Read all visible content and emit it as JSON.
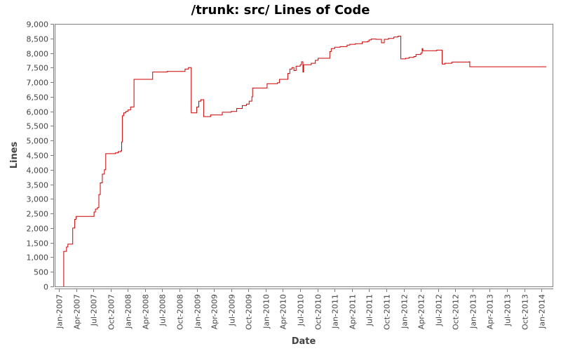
{
  "chart_data": {
    "type": "line",
    "title": "/trunk: src/ Lines of Code",
    "xlabel": "Date",
    "ylabel": "Lines",
    "ylim": [
      0,
      9000
    ],
    "yticks": [
      0,
      500,
      1000,
      1500,
      2000,
      2500,
      3000,
      3500,
      4000,
      4500,
      5000,
      5500,
      6000,
      6500,
      7000,
      7500,
      8000,
      8500,
      9000
    ],
    "ytick_labels": [
      "0",
      "500",
      "1,000",
      "1,500",
      "2,000",
      "2,500",
      "3,000",
      "3,500",
      "4,000",
      "4,500",
      "5,000",
      "5,500",
      "6,000",
      "6,500",
      "7,000",
      "7,500",
      "8,000",
      "8,500",
      "9,000"
    ],
    "xticks": [
      "Jan-2007",
      "Apr-2007",
      "Jul-2007",
      "Oct-2007",
      "Jan-2008",
      "Apr-2008",
      "Jul-2008",
      "Oct-2008",
      "Jan-2009",
      "Apr-2009",
      "Jul-2009",
      "Oct-2009",
      "Jan-2010",
      "Apr-2010",
      "Jul-2010",
      "Oct-2010",
      "Jan-2011",
      "Apr-2011",
      "Jul-2011",
      "Oct-2011",
      "Jan-2012",
      "Apr-2012",
      "Jul-2012",
      "Oct-2012",
      "Jan-2013",
      "Apr-2013",
      "Jul-2013",
      "Oct-2013",
      "Jan-2014"
    ],
    "grid": false,
    "legend": null,
    "line_color": "#cc0000",
    "series": [
      {
        "name": "Lines of Code",
        "step": true,
        "points": [
          [
            2007.07,
            0
          ],
          [
            2007.07,
            1200
          ],
          [
            2007.11,
            1350
          ],
          [
            2007.13,
            1450
          ],
          [
            2007.2,
            1450
          ],
          [
            2007.2,
            2000
          ],
          [
            2007.23,
            2300
          ],
          [
            2007.25,
            2400
          ],
          [
            2007.5,
            2400
          ],
          [
            2007.51,
            2550
          ],
          [
            2007.53,
            2650
          ],
          [
            2007.56,
            2700
          ],
          [
            2007.58,
            3150
          ],
          [
            2007.6,
            3550
          ],
          [
            2007.63,
            3850
          ],
          [
            2007.66,
            4000
          ],
          [
            2007.68,
            4550
          ],
          [
            2007.82,
            4580
          ],
          [
            2007.86,
            4620
          ],
          [
            2007.9,
            4650
          ],
          [
            2007.91,
            4950
          ],
          [
            2007.92,
            5850
          ],
          [
            2007.94,
            5950
          ],
          [
            2007.97,
            6000
          ],
          [
            2008.0,
            6050
          ],
          [
            2008.04,
            6150
          ],
          [
            2008.09,
            6150
          ],
          [
            2008.09,
            7100
          ],
          [
            2008.31,
            7100
          ],
          [
            2008.36,
            7350
          ],
          [
            2008.57,
            7370
          ],
          [
            2008.81,
            7370
          ],
          [
            2008.83,
            7450
          ],
          [
            2008.88,
            7500
          ],
          [
            2008.92,
            7500
          ],
          [
            2008.92,
            5950
          ],
          [
            2008.98,
            5950
          ],
          [
            2009.0,
            6150
          ],
          [
            2009.03,
            6350
          ],
          [
            2009.06,
            6400
          ],
          [
            2009.1,
            6400
          ],
          [
            2009.1,
            5820
          ],
          [
            2009.2,
            5820
          ],
          [
            2009.2,
            5880
          ],
          [
            2009.35,
            5880
          ],
          [
            2009.37,
            5970
          ],
          [
            2009.5,
            6000
          ],
          [
            2009.58,
            6100
          ],
          [
            2009.66,
            6200
          ],
          [
            2009.72,
            6250
          ],
          [
            2009.76,
            6350
          ],
          [
            2009.8,
            6500
          ],
          [
            2009.81,
            6800
          ],
          [
            2010.0,
            6800
          ],
          [
            2010.02,
            6950
          ],
          [
            2010.17,
            6980
          ],
          [
            2010.2,
            7100
          ],
          [
            2010.3,
            7100
          ],
          [
            2010.32,
            7300
          ],
          [
            2010.35,
            7450
          ],
          [
            2010.38,
            7500
          ],
          [
            2010.41,
            7400
          ],
          [
            2010.44,
            7550
          ],
          [
            2010.5,
            7600
          ],
          [
            2010.52,
            7700
          ],
          [
            2010.54,
            7350
          ],
          [
            2010.55,
            7600
          ],
          [
            2010.6,
            7600
          ],
          [
            2010.66,
            7650
          ],
          [
            2010.72,
            7750
          ],
          [
            2010.76,
            7820
          ],
          [
            2010.9,
            7820
          ],
          [
            2010.93,
            8050
          ],
          [
            2010.95,
            8150
          ],
          [
            2011.0,
            8200
          ],
          [
            2011.08,
            8220
          ],
          [
            2011.18,
            8270
          ],
          [
            2011.22,
            8300
          ],
          [
            2011.3,
            8320
          ],
          [
            2011.4,
            8380
          ],
          [
            2011.48,
            8400
          ],
          [
            2011.5,
            8450
          ],
          [
            2011.53,
            8480
          ],
          [
            2011.6,
            8470
          ],
          [
            2011.66,
            8470
          ],
          [
            2011.68,
            8350
          ],
          [
            2011.72,
            8470
          ],
          [
            2011.78,
            8500
          ],
          [
            2011.86,
            8550
          ],
          [
            2011.92,
            8580
          ],
          [
            2011.96,
            8580
          ],
          [
            2011.96,
            7800
          ],
          [
            2012.03,
            7820
          ],
          [
            2012.08,
            7850
          ],
          [
            2012.15,
            7880
          ],
          [
            2012.18,
            7950
          ],
          [
            2012.25,
            8000
          ],
          [
            2012.27,
            8150
          ],
          [
            2012.28,
            8080
          ],
          [
            2012.45,
            8080
          ],
          [
            2012.48,
            8100
          ],
          [
            2012.55,
            8100
          ],
          [
            2012.56,
            7620
          ],
          [
            2012.6,
            7650
          ],
          [
            2012.7,
            7690
          ],
          [
            2012.95,
            7700
          ],
          [
            2012.96,
            7530
          ],
          [
            2014.07,
            7530
          ]
        ]
      }
    ]
  }
}
